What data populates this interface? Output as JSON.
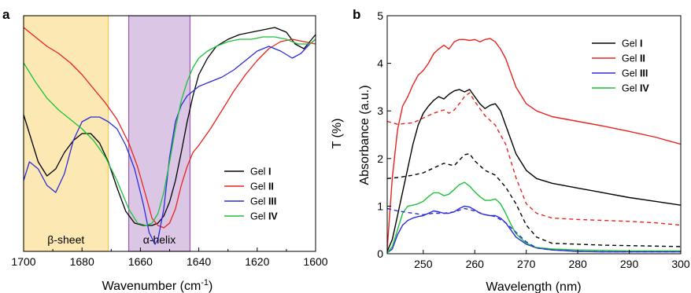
{
  "panels": [
    {
      "panel_label": "a",
      "chart_data": {
        "type": "line",
        "title": "",
        "xlabel_main": "Wavenumber (cm",
        "xlabel_sup": "-1",
        "xlabel_close": ")",
        "ylabel": "T (%)",
        "xlim": [
          1700,
          1600
        ],
        "ylim": [
          0,
          100
        ],
        "x_ticks": [
          1700,
          1680,
          1660,
          1640,
          1620,
          1600
        ],
        "y_ticks_visible": false,
        "regions": [
          {
            "label": "β-sheet",
            "x_from": 1700,
            "x_to": 1671,
            "color": "#fce8b2",
            "edge": "#f2c84b"
          },
          {
            "label": "α-helix",
            "x_from": 1664,
            "x_to": 1643,
            "color": "#dcc6e6",
            "edge": "#9b59b6"
          }
        ],
        "legend": {
          "position": "lower-right",
          "entries": [
            {
              "prefix": "Gel ",
              "roman": "I",
              "color": "#000000"
            },
            {
              "prefix": "Gel ",
              "roman": "II",
              "color": "#e8231c"
            },
            {
              "prefix": "Gel ",
              "roman": "III",
              "color": "#2b2bdb"
            },
            {
              "prefix": "Gel ",
              "roman": "IV",
              "color": "#1cc23a"
            }
          ]
        },
        "series": [
          {
            "name": "Gel I",
            "color": "#000000",
            "x": [
              1700,
              1698,
              1695,
              1692,
              1689,
              1686,
              1683,
              1680,
              1677,
              1674,
              1671,
              1668,
              1665,
              1662,
              1659,
              1656,
              1654,
              1652,
              1650,
              1648,
              1646,
              1644,
              1642,
              1640,
              1637,
              1634,
              1630,
              1626,
              1622,
              1618,
              1614,
              1610,
              1607,
              1604,
              1602,
              1600
            ],
            "y": [
              58,
              50,
              38,
              32,
              35,
              42,
              47,
              50,
              50,
              46,
              38,
              27,
              17,
              12,
              11,
              11,
              12,
              15,
              21,
              30,
              42,
              55,
              66,
              75,
              82,
              87,
              90,
              92,
              93,
              94,
              95,
              93,
              88,
              86,
              89,
              92
            ]
          },
          {
            "name": "Gel II",
            "color": "#e8231c",
            "x": [
              1700,
              1696,
              1692,
              1688,
              1684,
              1680,
              1676,
              1672,
              1668,
              1664,
              1661,
              1658,
              1656,
              1654,
              1652,
              1650,
              1648,
              1646,
              1644,
              1642,
              1640,
              1636,
              1632,
              1628,
              1624,
              1620,
              1616,
              1612,
              1608,
              1604,
              1600
            ],
            "y": [
              95,
              91,
              87,
              84,
              80,
              75,
              69,
              63,
              56,
              46,
              36,
              23,
              14,
              11,
              10,
              12,
              18,
              28,
              36,
              42,
              45,
              52,
              60,
              68,
              75,
              81,
              86,
              89,
              90,
              89,
              88
            ]
          },
          {
            "name": "Gel III",
            "color": "#2b2bdb",
            "x": [
              1700,
              1698,
              1695,
              1692,
              1689,
              1686,
              1683,
              1680,
              1677,
              1674,
              1671,
              1668,
              1665,
              1662,
              1659,
              1657,
              1655,
              1654,
              1652,
              1650,
              1648,
              1646,
              1644,
              1642,
              1640,
              1636,
              1632,
              1628,
              1624,
              1620,
              1616,
              1612,
              1608,
              1605,
              1602,
              1600
            ],
            "y": [
              30,
              38,
              35,
              28,
              25,
              33,
              47,
              55,
              57,
              57,
              55,
              52,
              45,
              35,
              20,
              8,
              3,
              5,
              18,
              40,
              55,
              62,
              66,
              68,
              70,
              72,
              74,
              77,
              81,
              85,
              87,
              85,
              82,
              84,
              88,
              90
            ]
          },
          {
            "name": "Gel IV",
            "color": "#1cc23a",
            "x": [
              1700,
              1696,
              1692,
              1688,
              1684,
              1680,
              1676,
              1672,
              1668,
              1664,
              1661,
              1658,
              1656,
              1654,
              1652,
              1650,
              1648,
              1646,
              1644,
              1642,
              1640,
              1637,
              1634,
              1630,
              1626,
              1622,
              1618,
              1614,
              1610,
              1606,
              1602,
              1600
            ],
            "y": [
              80,
              72,
              65,
              60,
              56,
              52,
              47,
              40,
              30,
              18,
              12,
              11,
              12,
              16,
              25,
              38,
              52,
              64,
              72,
              78,
              82,
              85,
              87,
              89,
              90,
              90,
              91,
              91,
              90,
              88,
              88,
              90
            ]
          }
        ]
      }
    },
    {
      "panel_label": "b",
      "chart_data": {
        "type": "line",
        "title": "",
        "xlabel": "Wavelength (nm)",
        "ylabel": "Absorbance (a.u.)",
        "xlim": [
          243,
          300
        ],
        "ylim": [
          0,
          5
        ],
        "x_ticks": [
          250,
          260,
          270,
          280,
          290,
          300
        ],
        "y_ticks": [
          0,
          1,
          2,
          3,
          4,
          5
        ],
        "legend": {
          "position": "top-right",
          "entries": [
            {
              "prefix": "Gel ",
              "roman": "I",
              "color": "#000000"
            },
            {
              "prefix": "Gel ",
              "roman": "II",
              "color": "#e8231c"
            },
            {
              "prefix": "Gel ",
              "roman": "III",
              "color": "#2b2bdb"
            },
            {
              "prefix": "Gel ",
              "roman": "IV",
              "color": "#1cc23a"
            }
          ]
        },
        "series": [
          {
            "name": "Gel I",
            "color": "#000000",
            "dash": false,
            "x": [
              243,
              244,
              245,
              246,
              247,
              248,
              249,
              250,
              251,
              252,
              253,
              254,
              255,
              256,
              257,
              258,
              259,
              260,
              261,
              262,
              263,
              264,
              265,
              266,
              267,
              268,
              270,
              272,
              275,
              280,
              285,
              290,
              295,
              300
            ],
            "y": [
              0.05,
              0.3,
              0.8,
              1.3,
              1.8,
              2.3,
              2.7,
              2.95,
              3.1,
              3.22,
              3.3,
              3.25,
              3.35,
              3.42,
              3.45,
              3.4,
              3.45,
              3.3,
              3.15,
              3.05,
              3.12,
              3.15,
              3.0,
              2.7,
              2.4,
              2.1,
              1.75,
              1.58,
              1.48,
              1.38,
              1.28,
              1.18,
              1.1,
              1.02
            ]
          },
          {
            "name": "Gel II",
            "color": "#e8231c",
            "dash": false,
            "x": [
              243,
              244,
              245,
              246,
              247,
              248,
              249,
              250,
              251,
              252,
              253,
              254,
              255,
              256,
              257,
              258,
              259,
              260,
              261,
              262,
              263,
              264,
              265,
              266,
              267,
              268,
              270,
              272,
              275,
              280,
              285,
              290,
              295,
              300
            ],
            "y": [
              0.1,
              1.6,
              2.6,
              3.1,
              3.3,
              3.55,
              3.75,
              3.85,
              4.0,
              4.2,
              4.3,
              4.38,
              4.3,
              4.45,
              4.5,
              4.5,
              4.48,
              4.5,
              4.45,
              4.5,
              4.52,
              4.45,
              4.3,
              4.1,
              3.8,
              3.5,
              3.15,
              3.0,
              2.88,
              2.78,
              2.68,
              2.57,
              2.45,
              2.3
            ]
          },
          {
            "name": "Gel III",
            "color": "#2b2bdb",
            "dash": false,
            "x": [
              243,
              244,
              245,
              246,
              247,
              248,
              249,
              250,
              251,
              252,
              253,
              254,
              255,
              256,
              257,
              258,
              259,
              260,
              261,
              262,
              263,
              264,
              265,
              266,
              267,
              268,
              270,
              272,
              275,
              280,
              285,
              290,
              295,
              300
            ],
            "y": [
              0.02,
              0.1,
              0.4,
              0.6,
              0.7,
              0.75,
              0.78,
              0.8,
              0.85,
              0.9,
              0.88,
              0.85,
              0.85,
              0.88,
              0.95,
              1.0,
              0.98,
              0.92,
              0.85,
              0.82,
              0.8,
              0.8,
              0.75,
              0.65,
              0.5,
              0.35,
              0.2,
              0.12,
              0.08,
              0.05,
              0.04,
              0.04,
              0.04,
              0.04
            ]
          },
          {
            "name": "Gel IV",
            "color": "#1cc23a",
            "dash": false,
            "x": [
              243,
              244,
              245,
              246,
              247,
              248,
              249,
              250,
              251,
              252,
              253,
              254,
              255,
              256,
              257,
              258,
              259,
              260,
              261,
              262,
              263,
              264,
              265,
              266,
              267,
              268,
              270,
              272,
              275,
              280,
              285,
              290,
              295,
              300
            ],
            "y": [
              0.02,
              0.15,
              0.5,
              0.85,
              1.0,
              1.02,
              1.05,
              1.1,
              1.2,
              1.28,
              1.28,
              1.22,
              1.25,
              1.35,
              1.45,
              1.5,
              1.42,
              1.3,
              1.2,
              1.12,
              1.12,
              1.15,
              1.05,
              0.85,
              0.62,
              0.42,
              0.22,
              0.13,
              0.1,
              0.08,
              0.07,
              0.06,
              0.06,
              0.06
            ]
          },
          {
            "name": "Gel I (dashed)",
            "color": "#000000",
            "dash": true,
            "x": [
              243,
              245,
              248,
              250,
              252,
              254,
              256,
              258,
              259,
              260,
              262,
              264,
              266,
              268,
              270,
              272,
              275,
              280,
              285,
              290,
              295,
              300
            ],
            "y": [
              1.58,
              1.6,
              1.65,
              1.7,
              1.8,
              1.9,
              1.85,
              2.08,
              2.1,
              1.95,
              1.75,
              1.65,
              1.4,
              1.05,
              0.6,
              0.35,
              0.22,
              0.2,
              0.18,
              0.17,
              0.16,
              0.15
            ]
          },
          {
            "name": "Gel II (dashed)",
            "color": "#e8231c",
            "dash": true,
            "x": [
              243,
              245,
              248,
              250,
              252,
              254,
              255,
              256,
              257,
              258,
              259,
              260,
              262,
              264,
              266,
              268,
              270,
              272,
              275,
              280,
              285,
              290,
              295,
              300
            ],
            "y": [
              2.78,
              2.72,
              2.75,
              2.85,
              2.95,
              3.02,
              2.95,
              3.02,
              3.15,
              3.3,
              3.38,
              3.2,
              2.9,
              2.7,
              2.3,
              1.6,
              1.05,
              0.85,
              0.75,
              0.72,
              0.7,
              0.68,
              0.65,
              0.6
            ]
          },
          {
            "name": "Gel III (dashed)",
            "color": "#2b2bdb",
            "dash": true,
            "x": [
              243,
              245,
              248,
              250,
              252,
              254,
              256,
              258,
              260,
              262,
              264,
              266,
              268,
              270,
              272,
              275,
              280,
              285,
              290,
              295,
              300
            ],
            "y": [
              0.95,
              0.9,
              0.85,
              0.82,
              0.85,
              0.85,
              0.88,
              0.95,
              0.9,
              0.82,
              0.78,
              0.65,
              0.45,
              0.25,
              0.12,
              0.08,
              0.05,
              0.04,
              0.04,
              0.04,
              0.04
            ]
          }
        ]
      }
    }
  ]
}
